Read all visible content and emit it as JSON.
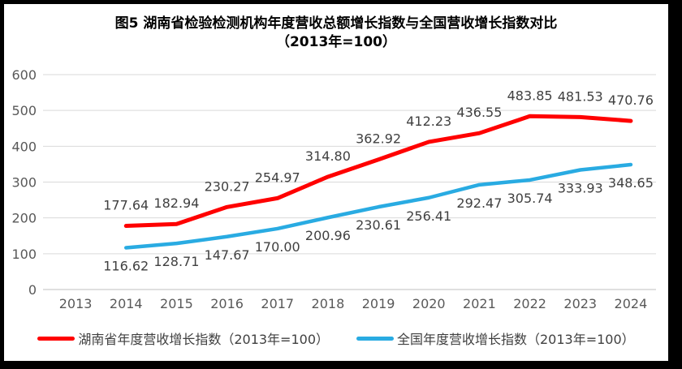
{
  "title": {
    "line1": "图5 湖南省检验检测机构年度营收总额增长指数与全国营收增长指数对比",
    "line2": "（2013年=100）"
  },
  "colors": {
    "hunan_line": "#FF0000",
    "national_line": "#29ABE2",
    "gridline": "#D9D9D9",
    "axis_line": "#BFBFBF",
    "tick_text": "#595959",
    "data_label_text": "#404040",
    "frame": "#000000"
  },
  "chart_data": {
    "type": "line",
    "categories": [
      "2013",
      "2014",
      "2015",
      "2016",
      "2017",
      "2018",
      "2019",
      "2020",
      "2021",
      "2022",
      "2023",
      "2024"
    ],
    "series": [
      {
        "name": "湖南省年度营收增长指数（2013年=100）",
        "color": "#FF0000",
        "stroke_width": 5,
        "label_position": "above",
        "values": [
          null,
          177.64,
          182.94,
          230.27,
          254.97,
          314.8,
          362.92,
          412.23,
          436.55,
          483.85,
          481.53,
          470.76
        ]
      },
      {
        "name": "全国年度营收增长指数（2013年=100）",
        "color": "#29ABE2",
        "stroke_width": 4.5,
        "label_position": "below",
        "values": [
          null,
          116.62,
          128.71,
          147.67,
          170.0,
          200.96,
          230.61,
          256.41,
          292.47,
          305.74,
          333.93,
          348.65
        ]
      }
    ],
    "ylim": [
      0,
      600
    ],
    "yticks": [
      0,
      100,
      200,
      300,
      400,
      500,
      600
    ],
    "grid": true,
    "legend_position": "bottom",
    "label_format": "2dp"
  }
}
